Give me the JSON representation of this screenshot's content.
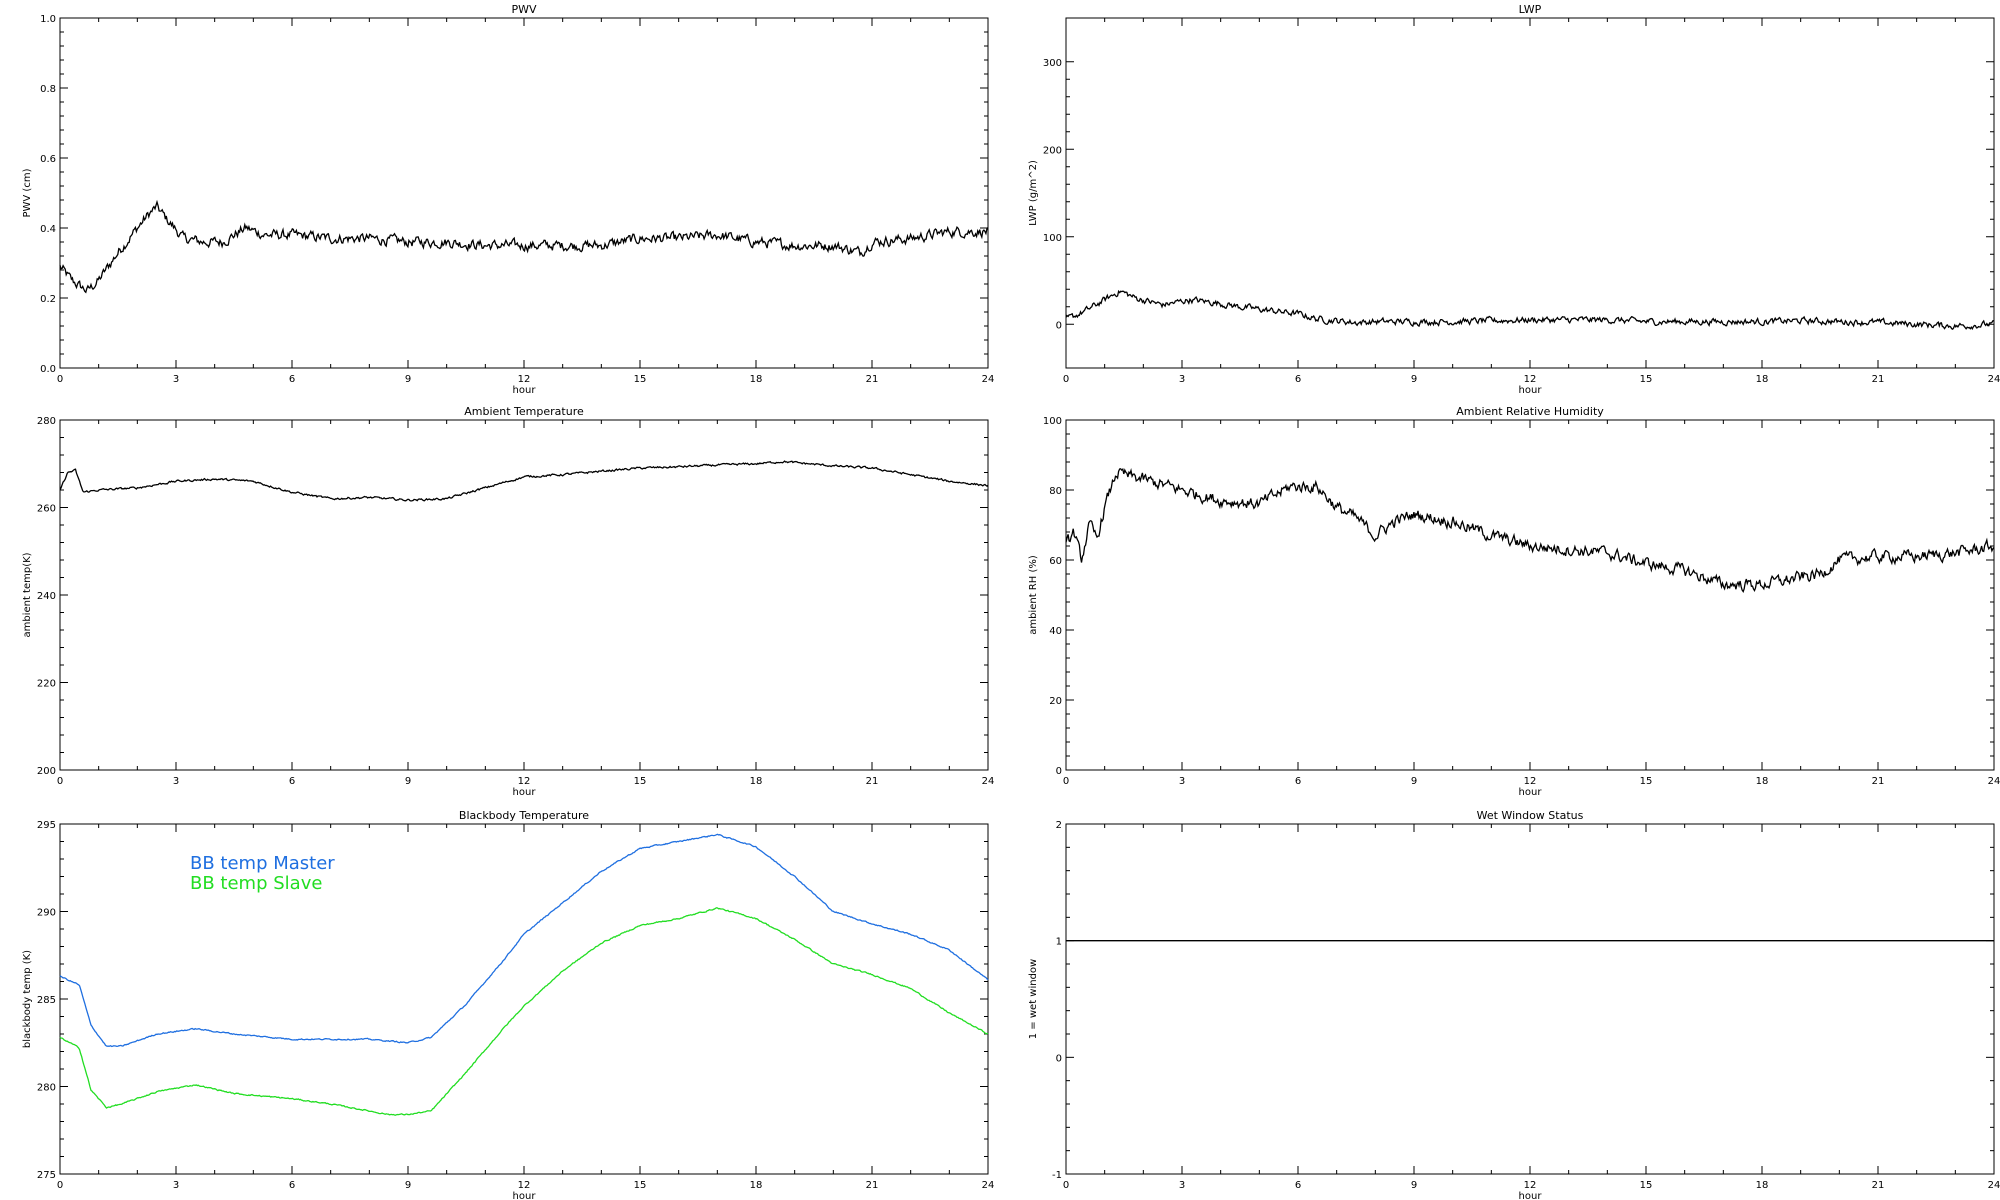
{
  "chart_data": [
    {
      "id": "pwv",
      "type": "line",
      "title": "PWV",
      "xlabel": "hour",
      "ylabel": "PWV (cm)",
      "xlim": [
        0,
        24
      ],
      "ylim": [
        0,
        1
      ],
      "xticks": [
        0,
        3,
        6,
        9,
        12,
        15,
        18,
        21,
        24
      ],
      "yticks": [
        "0.0",
        "0.2",
        "0.4",
        "0.6",
        "0.8",
        "1.0"
      ],
      "ytick_values": [
        0,
        0.2,
        0.4,
        0.6,
        0.8,
        1.0
      ],
      "series": [
        {
          "color": "#000000",
          "noise": 0.012,
          "x": [
            0,
            0.3,
            0.7,
            1.0,
            1.5,
            2.0,
            2.3,
            2.5,
            2.8,
            3.2,
            3.7,
            4.2,
            4.8,
            5.3,
            6,
            7,
            8,
            9,
            10,
            11,
            12,
            13,
            14,
            15,
            16,
            17,
            18,
            19,
            20,
            20.7,
            21,
            22,
            23,
            24
          ],
          "y": [
            0.29,
            0.25,
            0.22,
            0.25,
            0.33,
            0.4,
            0.44,
            0.46,
            0.42,
            0.37,
            0.36,
            0.36,
            0.4,
            0.38,
            0.38,
            0.37,
            0.37,
            0.36,
            0.36,
            0.35,
            0.35,
            0.35,
            0.35,
            0.37,
            0.37,
            0.38,
            0.36,
            0.35,
            0.35,
            0.33,
            0.36,
            0.37,
            0.39,
            0.39
          ]
        }
      ]
    },
    {
      "id": "lwp",
      "type": "line",
      "title": "LWP",
      "xlabel": "hour",
      "ylabel": "LWP (g/m^2)",
      "xlim": [
        0,
        24
      ],
      "ylim": [
        -50,
        350
      ],
      "xticks": [
        0,
        3,
        6,
        9,
        12,
        15,
        18,
        21,
        24
      ],
      "yticks": [
        "0",
        "100",
        "200",
        "300"
      ],
      "ytick_values": [
        0,
        100,
        200,
        300
      ],
      "series": [
        {
          "color": "#000000",
          "noise": 3,
          "x": [
            0,
            0.5,
            1.0,
            1.4,
            1.8,
            2.5,
            3.2,
            3.8,
            4.5,
            5.2,
            6,
            6.5,
            7.5,
            8,
            9,
            10,
            11,
            12,
            13,
            14,
            15,
            16,
            17,
            18,
            19,
            20,
            21,
            22,
            23,
            24
          ],
          "y": [
            5,
            15,
            28,
            38,
            30,
            22,
            28,
            25,
            20,
            16,
            12,
            6,
            2,
            3,
            3,
            3,
            4,
            5,
            5,
            5,
            3,
            3,
            3,
            3,
            4,
            3,
            2,
            0,
            -2,
            0
          ]
        }
      ]
    },
    {
      "id": "ambient-temp",
      "type": "line",
      "title": "Ambient Temperature",
      "xlabel": "hour",
      "ylabel": "ambient temp(K)",
      "xlim": [
        0,
        24
      ],
      "ylim": [
        200,
        280
      ],
      "xticks": [
        0,
        3,
        6,
        9,
        12,
        15,
        18,
        21,
        24
      ],
      "yticks": [
        "200",
        "220",
        "240",
        "260",
        "280"
      ],
      "ytick_values": [
        200,
        220,
        240,
        260,
        280
      ],
      "series": [
        {
          "color": "#000000",
          "noise": 0.2,
          "x": [
            0,
            0.2,
            0.4,
            0.6,
            1,
            2,
            3,
            4,
            5,
            6,
            7,
            8,
            9,
            10,
            11,
            12,
            13,
            14,
            15,
            16,
            17,
            18,
            18.7,
            20,
            21,
            22,
            23,
            24
          ],
          "y": [
            264,
            268,
            268.5,
            263.5,
            264,
            264.5,
            266,
            266.5,
            266,
            263.5,
            262,
            262.3,
            261.7,
            262,
            264.5,
            267,
            267.5,
            268.3,
            269,
            269.3,
            269.7,
            270,
            270.5,
            269.5,
            269,
            267.5,
            266,
            265
          ]
        }
      ]
    },
    {
      "id": "ambient-rh",
      "type": "line",
      "title": "Ambient Relative Humidity",
      "xlabel": "hour",
      "ylabel": "ambient RH (%)",
      "xlim": [
        0,
        24
      ],
      "ylim": [
        0,
        100
      ],
      "xticks": [
        0,
        3,
        6,
        9,
        12,
        15,
        18,
        21,
        24
      ],
      "yticks": [
        "0",
        "20",
        "40",
        "60",
        "80",
        "100"
      ],
      "ytick_values": [
        0,
        20,
        40,
        60,
        80,
        100
      ],
      "series": [
        {
          "color": "#000000",
          "noise": 1.4,
          "x": [
            0,
            0.2,
            0.4,
            0.6,
            0.8,
            1.0,
            1.3,
            1.6,
            2,
            3,
            4,
            5,
            5.8,
            6.5,
            7,
            7.5,
            8,
            8.5,
            9,
            10,
            11,
            12,
            13,
            14,
            15,
            16,
            17,
            17.5,
            18,
            19,
            19.5,
            20,
            21,
            22,
            23,
            24
          ],
          "y": [
            64,
            68,
            60,
            70,
            66,
            75,
            85,
            84,
            83,
            80,
            77,
            76,
            81,
            81,
            75,
            72,
            67,
            71,
            73,
            71,
            67,
            64,
            63,
            62,
            59,
            57,
            53,
            53,
            53,
            55,
            56,
            60,
            61,
            61,
            62,
            64
          ]
        }
      ]
    },
    {
      "id": "blackbody-temp",
      "type": "line",
      "title": "Blackbody Temperature",
      "xlabel": "hour",
      "ylabel": "blackbody temp (K)",
      "xlim": [
        0,
        24
      ],
      "ylim": [
        275,
        295
      ],
      "xticks": [
        0,
        3,
        6,
        9,
        12,
        15,
        18,
        21,
        24
      ],
      "yticks": [
        "275",
        "280",
        "285",
        "290",
        "295"
      ],
      "ytick_values": [
        275,
        280,
        285,
        290,
        295
      ],
      "legend": [
        {
          "label": "BB temp Master",
          "color": "#1f6fe0"
        },
        {
          "label": "BB temp Slave",
          "color": "#22dd22"
        }
      ],
      "series": [
        {
          "name": "BB temp Master",
          "color": "#1f6fe0",
          "noise": 0.03,
          "x": [
            0,
            0.5,
            0.8,
            1.2,
            1.6,
            2.5,
            3.5,
            4.5,
            5.5,
            6,
            7,
            8,
            9,
            9.6,
            10.5,
            11.5,
            12,
            13,
            14,
            15,
            16,
            17,
            18,
            19,
            20,
            21,
            22,
            23,
            24
          ],
          "y": [
            286.3,
            285.8,
            283.5,
            282.3,
            282.3,
            283,
            283.3,
            283,
            282.8,
            282.7,
            282.7,
            282.7,
            282.5,
            282.8,
            284.7,
            287.3,
            288.7,
            290.5,
            292.3,
            293.6,
            294,
            294.4,
            293.7,
            292,
            290,
            289.3,
            288.7,
            287.8,
            286.1
          ]
        },
        {
          "name": "BB temp Slave",
          "color": "#22dd22",
          "noise": 0.03,
          "x": [
            0,
            0.5,
            0.8,
            1.2,
            1.6,
            2.5,
            3.5,
            4.5,
            5.5,
            6,
            7,
            8,
            8.5,
            9,
            9.6,
            10.5,
            11.5,
            12,
            13,
            14,
            15,
            16,
            17,
            18,
            19,
            20,
            21,
            22,
            23,
            24
          ],
          "y": [
            282.8,
            282.2,
            279.8,
            278.8,
            279,
            279.7,
            280.1,
            279.6,
            279.4,
            279.3,
            279,
            278.6,
            278.4,
            278.4,
            278.6,
            280.8,
            283.4,
            284.6,
            286.6,
            288.2,
            289.2,
            289.6,
            290.2,
            289.6,
            288.4,
            287,
            286.4,
            285.6,
            284.2,
            283
          ]
        }
      ]
    },
    {
      "id": "wet-window",
      "type": "line",
      "title": "Wet Window Status",
      "xlabel": "hour",
      "ylabel": "1 = wet window",
      "xlim": [
        0,
        24
      ],
      "ylim": [
        -1,
        2
      ],
      "xticks": [
        0,
        3,
        6,
        9,
        12,
        15,
        18,
        21,
        24
      ],
      "yticks": [
        "-1",
        "0",
        "1",
        "2"
      ],
      "ytick_values": [
        -1,
        0,
        1,
        2
      ],
      "series": [
        {
          "color": "#000000",
          "noise": 0,
          "x": [
            0,
            24
          ],
          "y": [
            1,
            1
          ]
        }
      ]
    }
  ]
}
